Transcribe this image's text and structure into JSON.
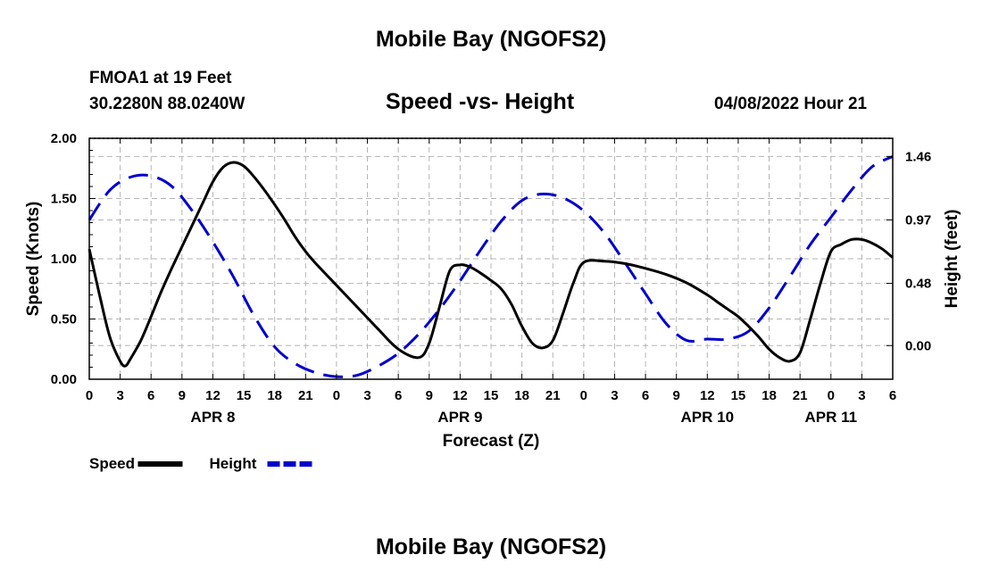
{
  "header": {
    "title_top": "Mobile Bay (NGOFS2)",
    "station": "FMOA1 at 19 Feet",
    "coords": "30.2280N  88.0240W",
    "chart_title": "Speed -vs- Height",
    "datetime": "04/08/2022 Hour 21",
    "title_bottom": "Mobile Bay (NGOFS2)"
  },
  "chart_data": {
    "type": "line",
    "title": "Speed -vs- Height",
    "xlabel": "Forecast (Z)",
    "ylabel": "Speed (Knots)",
    "y2label": "Height (feet)",
    "x_start": "04/08/2022 00Z",
    "x_range_hours": [
      0,
      78
    ],
    "x_tick_step_hours": 3,
    "x_tick_labels": [
      "0",
      "3",
      "6",
      "9",
      "12",
      "15",
      "18",
      "21",
      "0",
      "3",
      "6",
      "9",
      "12",
      "15",
      "18",
      "21",
      "0",
      "3",
      "6",
      "9",
      "12",
      "15",
      "18",
      "21",
      "0",
      "3",
      "6"
    ],
    "day_labels": [
      {
        "label": "APR 8",
        "hour": 12
      },
      {
        "label": "APR 9",
        "hour": 36
      },
      {
        "label": "APR 10",
        "hour": 60
      },
      {
        "label": "APR 11",
        "hour": 72
      }
    ],
    "ylim": [
      0,
      2.0
    ],
    "y_ticks": [
      0.0,
      0.5,
      1.0,
      1.5,
      2.0
    ],
    "y_tick_labels": [
      "0.00",
      "0.50",
      "1.00",
      "1.50",
      "2.00"
    ],
    "y2lim": [
      -0.26,
      1.6
    ],
    "y2_ticks": [
      0.0,
      0.48,
      0.97,
      1.46
    ],
    "y2_tick_labels": [
      "0.00",
      "0.48",
      "0.97",
      "1.46"
    ],
    "grid": true,
    "legend_position": "bottom-left",
    "series": [
      {
        "name": "Speed",
        "axis": "left",
        "color": "#000000",
        "dash": "solid",
        "x": [
          0,
          1,
          2,
          3,
          3.5,
          4,
          5,
          6,
          7,
          8,
          9,
          10,
          11,
          12,
          13,
          14,
          15,
          16,
          17,
          18,
          19,
          20,
          21,
          22,
          24,
          26,
          28,
          30,
          32,
          33,
          34,
          35,
          36,
          37,
          38,
          39,
          40,
          41,
          42,
          43,
          44,
          45,
          46,
          47,
          48,
          50,
          52,
          54,
          56,
          58,
          60,
          61,
          62,
          63,
          64,
          65,
          66,
          67,
          68,
          69,
          70,
          71,
          72,
          73,
          74,
          75,
          76,
          77,
          78
        ],
        "values": [
          1.08,
          0.7,
          0.35,
          0.15,
          0.11,
          0.17,
          0.32,
          0.52,
          0.73,
          0.92,
          1.1,
          1.28,
          1.46,
          1.64,
          1.76,
          1.8,
          1.77,
          1.68,
          1.57,
          1.45,
          1.32,
          1.18,
          1.06,
          0.96,
          0.78,
          0.6,
          0.42,
          0.25,
          0.18,
          0.3,
          0.6,
          0.9,
          0.95,
          0.93,
          0.88,
          0.82,
          0.75,
          0.62,
          0.44,
          0.3,
          0.26,
          0.32,
          0.55,
          0.8,
          0.97,
          0.98,
          0.96,
          0.92,
          0.87,
          0.8,
          0.7,
          0.64,
          0.58,
          0.52,
          0.44,
          0.35,
          0.25,
          0.18,
          0.15,
          0.22,
          0.5,
          0.8,
          1.06,
          1.12,
          1.16,
          1.16,
          1.13,
          1.08,
          1.01
        ]
      },
      {
        "name": "Height",
        "axis": "right",
        "color": "#0000cc",
        "dash": "dashed",
        "x": [
          0,
          2,
          4,
          6,
          8,
          10,
          12,
          14,
          16,
          18,
          20,
          22,
          24,
          26,
          28,
          30,
          32,
          34,
          36,
          38,
          40,
          42,
          44,
          46,
          48,
          50,
          52,
          54,
          56,
          58,
          60,
          62,
          64,
          66,
          68,
          70,
          72,
          74,
          76,
          78
        ],
        "values": [
          0.97,
          1.2,
          1.3,
          1.31,
          1.23,
          1.04,
          0.8,
          0.53,
          0.23,
          -0.01,
          -0.14,
          -0.21,
          -0.24,
          -0.23,
          -0.16,
          -0.06,
          0.09,
          0.28,
          0.5,
          0.74,
          0.96,
          1.12,
          1.17,
          1.14,
          1.04,
          0.87,
          0.64,
          0.4,
          0.17,
          0.04,
          0.05,
          0.05,
          0.11,
          0.29,
          0.53,
          0.78,
          0.99,
          1.2,
          1.38,
          1.46
        ]
      }
    ],
    "legend": [
      {
        "label": "Speed",
        "color": "#000000",
        "dash": "solid"
      },
      {
        "label": "Height",
        "color": "#0000cc",
        "dash": "dashed"
      }
    ]
  }
}
